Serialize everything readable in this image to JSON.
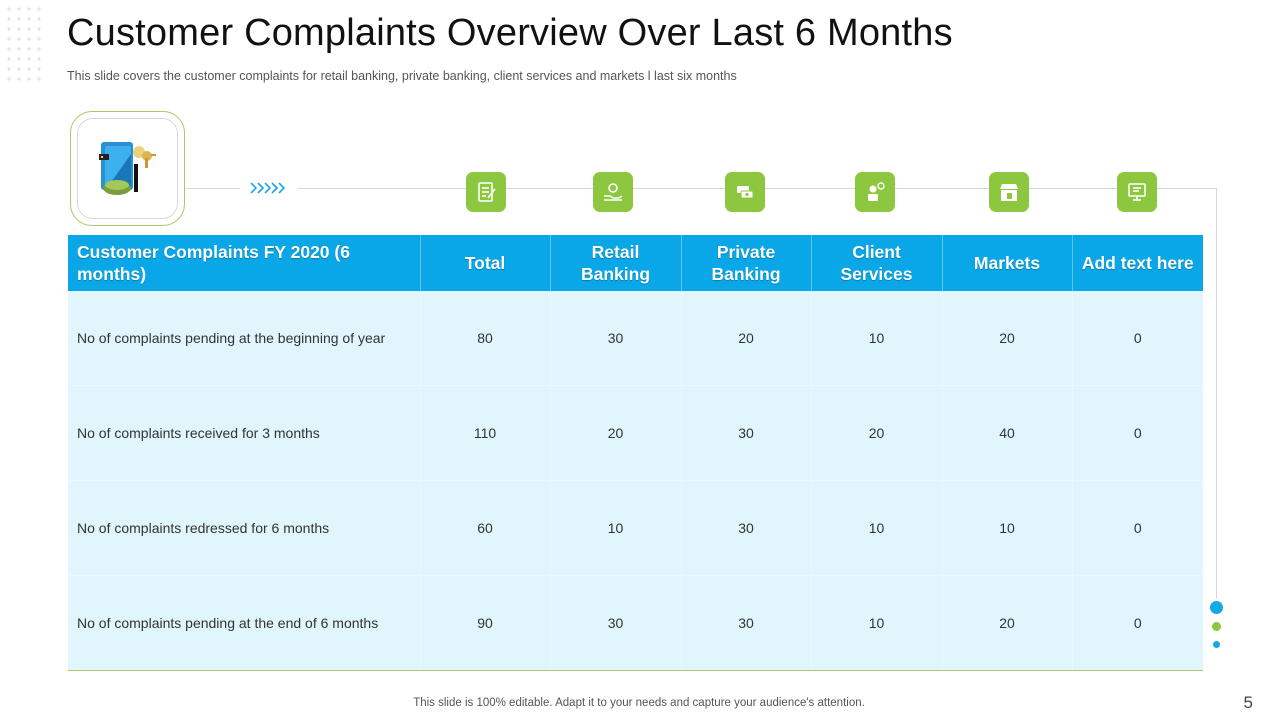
{
  "slide": {
    "title": "Customer Complaints Overview Over Last 6 Months",
    "subtitle": "This slide covers the customer complaints for retail banking, private banking, client services and markets l last six months",
    "footer": "This slide is 100% editable. Adapt it to your needs and capture your audience's attention.",
    "page_number": "5"
  },
  "colors": {
    "header_blue": "#0aa7e8",
    "row_bg": "#e0f5fc",
    "icon_green": "#8dc63f",
    "border_green": "#a9c96a",
    "dot_blue": "#13a9e6"
  },
  "hero": {
    "icon": "finance-document-icon"
  },
  "column_icons": [
    "checklist-icon",
    "hand-coin-icon",
    "banknote-icon",
    "customer-service-icon",
    "market-store-icon",
    "presentation-icon"
  ],
  "table": {
    "headers": [
      "Customer Complaints FY 2020 (6 months)",
      "Total",
      "Retail Banking",
      "Private Banking",
      "Client Services",
      "Markets",
      "Add text here"
    ],
    "rows": [
      {
        "label": "No of complaints pending at the beginning of year",
        "values": [
          "80",
          "30",
          "20",
          "10",
          "20",
          "0"
        ]
      },
      {
        "label": "No of complaints received for 3 months",
        "values": [
          "110",
          "20",
          "30",
          "20",
          "40",
          "0"
        ]
      },
      {
        "label": "No of complaints redressed for 6 months",
        "values": [
          "60",
          "10",
          "30",
          "10",
          "10",
          "0"
        ]
      },
      {
        "label": "No of complaints pending at the end of 6 months",
        "values": [
          "90",
          "30",
          "30",
          "10",
          "20",
          "0"
        ]
      }
    ]
  }
}
